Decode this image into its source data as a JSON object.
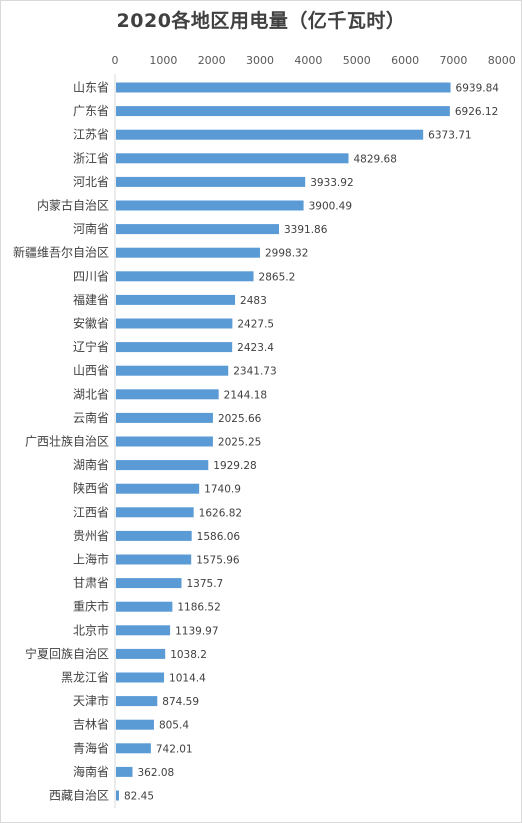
{
  "chart_data": {
    "type": "bar",
    "orientation": "horizontal",
    "title": "2020各地区用电量（亿千瓦时）",
    "xaxis_position": "top",
    "xlim": [
      0,
      8000
    ],
    "xticks": [
      0,
      1000,
      2000,
      3000,
      4000,
      5000,
      6000,
      7000,
      8000
    ],
    "grid": false,
    "bar_color": "#5b9bd5",
    "categories": [
      "山东省",
      "广东省",
      "江苏省",
      "浙江省",
      "河北省",
      "内蒙古自治区",
      "河南省",
      "新疆维吾尔自治区",
      "四川省",
      "福建省",
      "安徽省",
      "辽宁省",
      "山西省",
      "湖北省",
      "云南省",
      "广西壮族自治区",
      "湖南省",
      "陕西省",
      "江西省",
      "贵州省",
      "上海市",
      "甘肃省",
      "重庆市",
      "北京市",
      "宁夏回族自治区",
      "黑龙江省",
      "天津市",
      "吉林省",
      "青海省",
      "海南省",
      "西藏自治区"
    ],
    "values": [
      6939.84,
      6926.12,
      6373.71,
      4829.68,
      3933.92,
      3900.49,
      3391.86,
      2998.32,
      2865.2,
      2483,
      2427.5,
      2423.4,
      2341.73,
      2144.18,
      2025.66,
      2025.25,
      1929.28,
      1740.9,
      1626.82,
      1586.06,
      1575.96,
      1375.7,
      1186.52,
      1139.97,
      1038.2,
      1014.4,
      874.59,
      805.4,
      742.01,
      362.08,
      82.45
    ],
    "labels": [
      "6939.84",
      "6926.12",
      "6373.71",
      "4829.68",
      "3933.92",
      "3900.49",
      "3391.86",
      "2998.32",
      "2865.2",
      "2483",
      "2427.5",
      "2423.4",
      "2341.73",
      "2144.18",
      "2025.66",
      "2025.25",
      "1929.28",
      "1740.9",
      "1626.82",
      "1586.06",
      "1575.96",
      "1375.7",
      "1186.52",
      "1139.97",
      "1038.2",
      "1014.4",
      "874.59",
      "805.4",
      "742.01",
      "362.08",
      "82.45"
    ]
  }
}
